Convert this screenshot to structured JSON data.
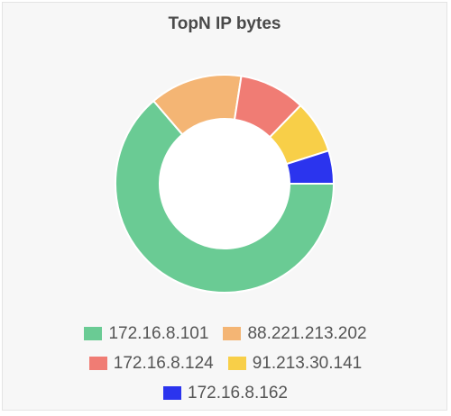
{
  "chart_data": {
    "type": "pie",
    "title": "TopN IP bytes",
    "labels": [
      "172.16.8.101",
      "88.221.213.202",
      "172.16.8.124",
      "91.213.30.141",
      "172.16.8.162"
    ],
    "values": [
      65,
      14,
      10,
      8,
      5
    ],
    "colors": [
      "#6acb94",
      "#f4b574",
      "#f07c74",
      "#f8cf48",
      "#2b34ee"
    ],
    "legend_position": "bottom"
  }
}
